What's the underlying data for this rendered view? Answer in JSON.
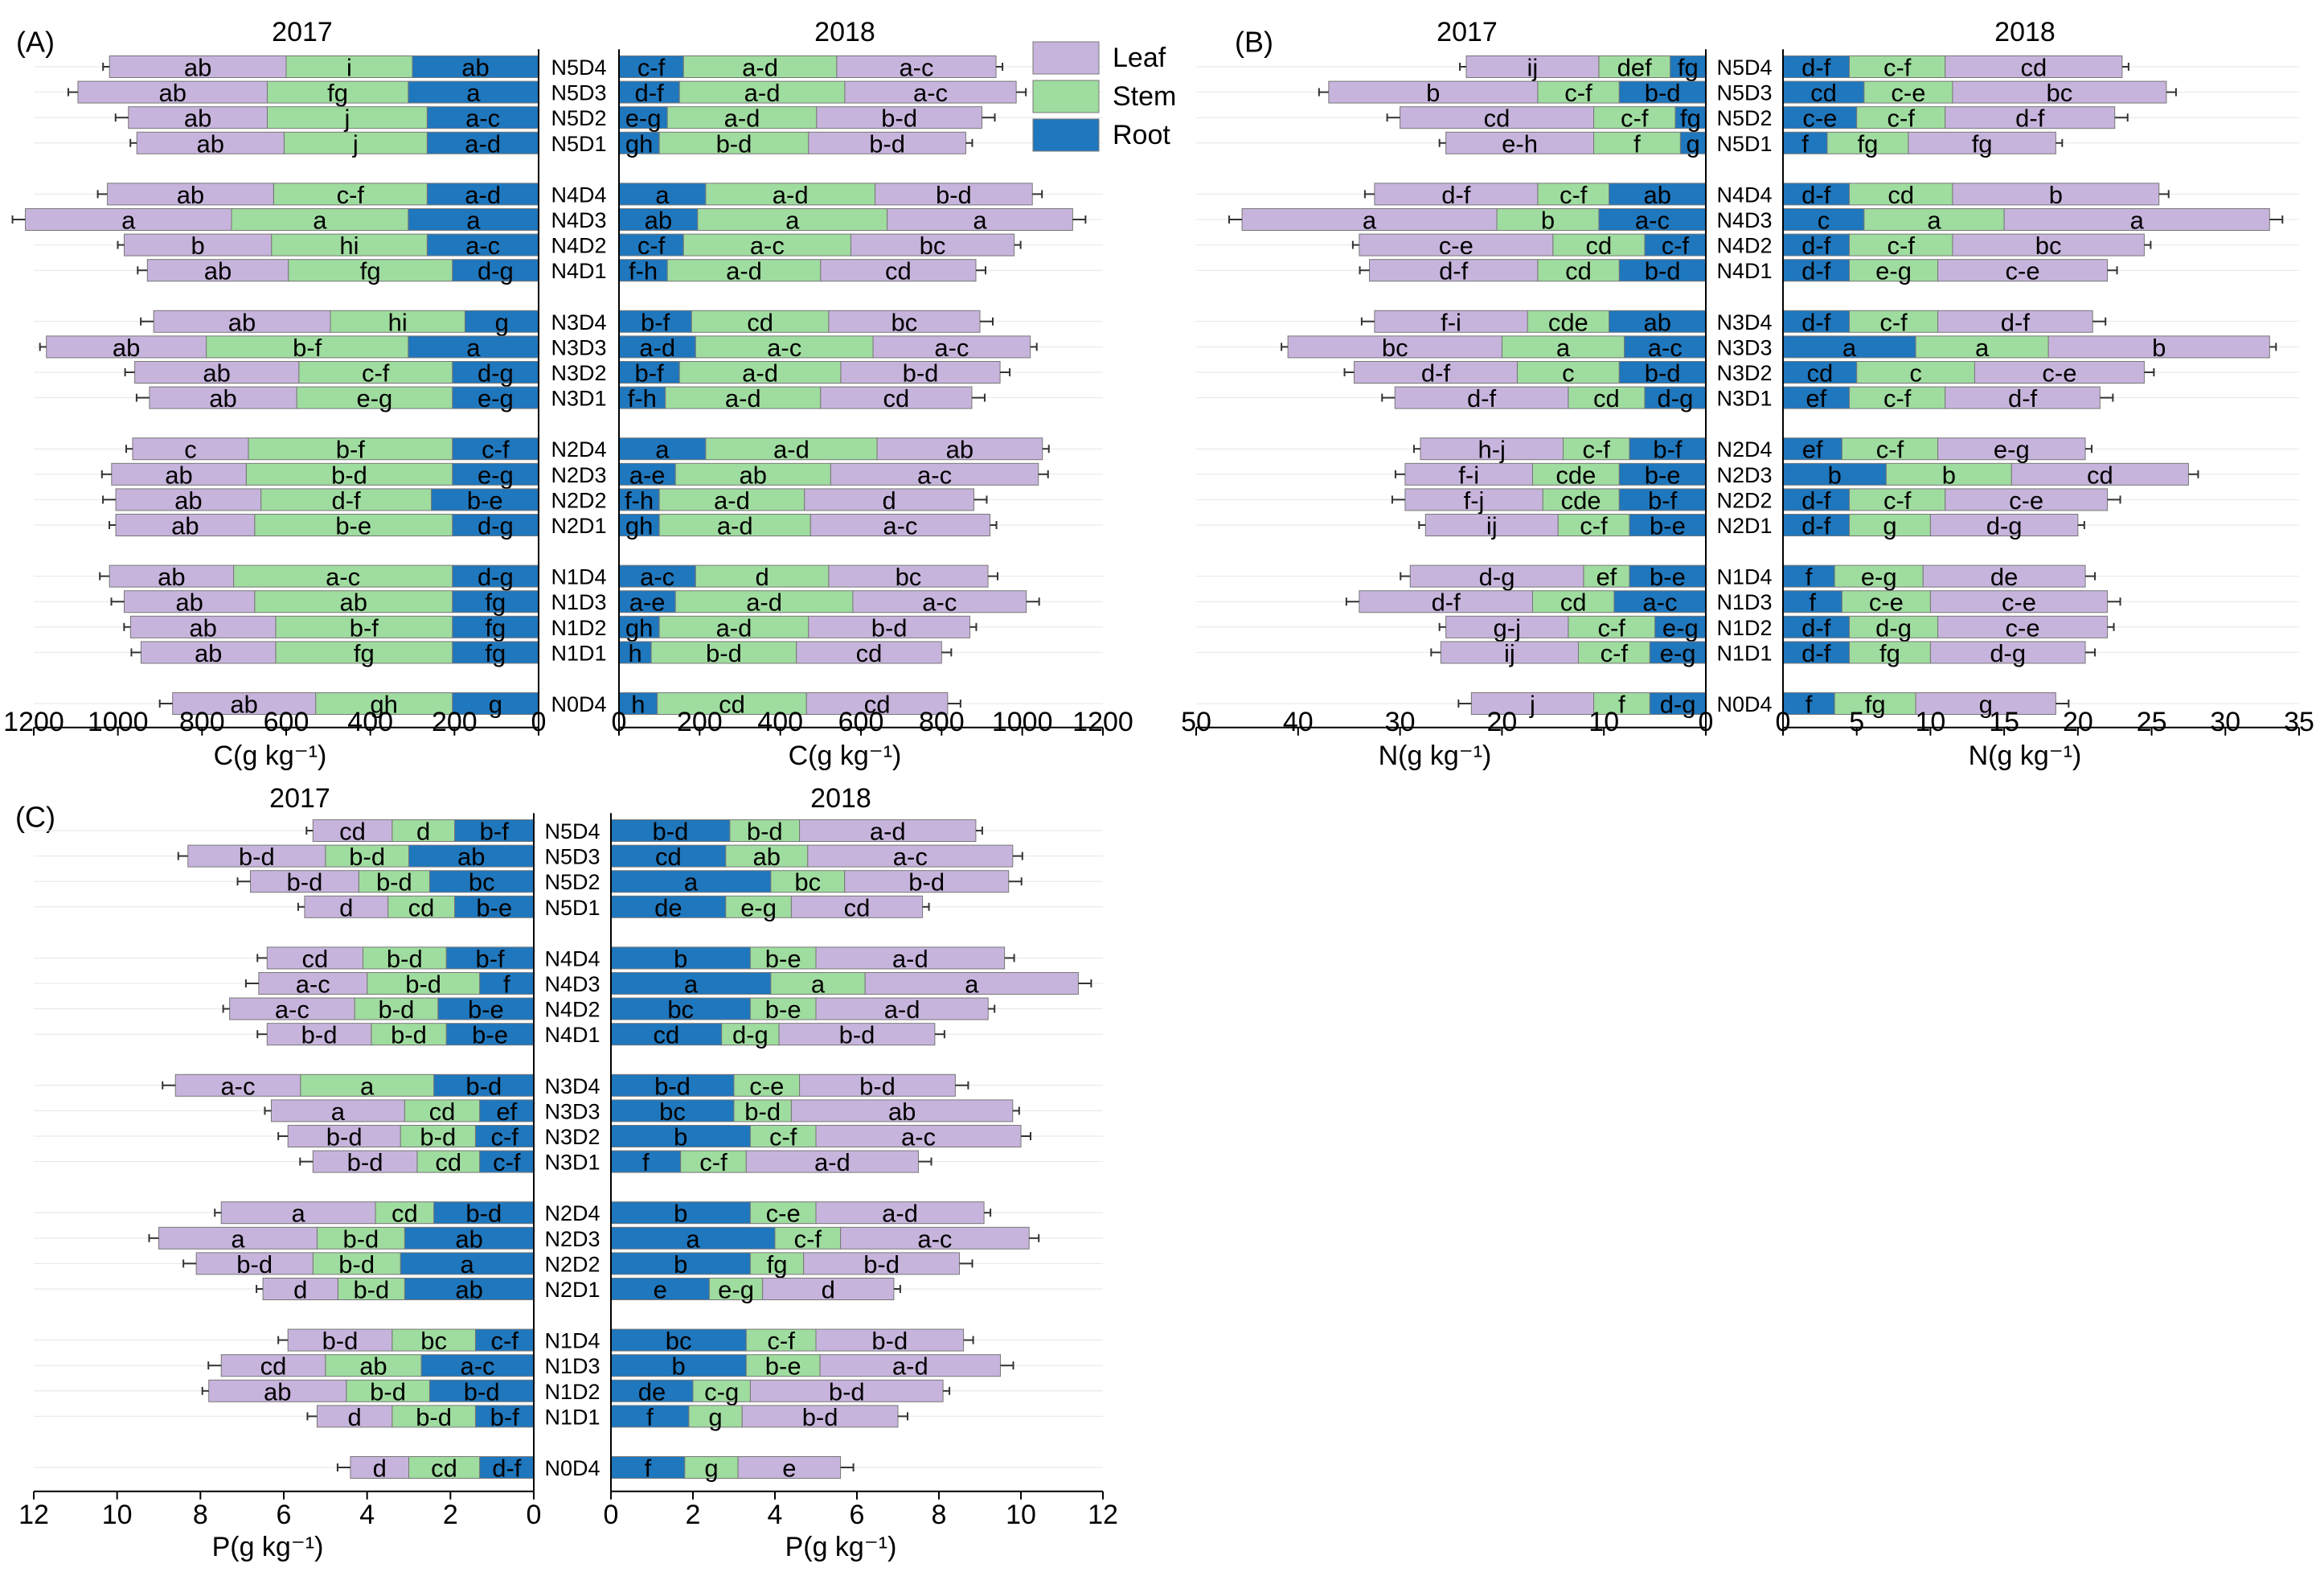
{
  "legend": {
    "items": [
      {
        "name": "Leaf",
        "color": "#c7b4dc"
      },
      {
        "name": "Stem",
        "color": "#9fdc9f"
      },
      {
        "name": "Root",
        "color": "#1f77bd"
      }
    ]
  },
  "chart_data": [
    {
      "type": "bar",
      "panel": "(A)",
      "subtype": "stacked-horizontal-butterfly",
      "xlabel_left": "C(g kg⁻¹)",
      "xlabel_right": "C(g kg⁻¹)",
      "year_left": "2017",
      "year_right": "2018",
      "xlim": [
        0,
        1200
      ],
      "ticks": [
        "0",
        "200",
        "400",
        "600",
        "800",
        "1000",
        "1200"
      ],
      "categories": [
        "N5D4",
        "N5D3",
        "N5D2",
        "N5D1",
        "N4D4",
        "N4D3",
        "N4D2",
        "N4D1",
        "N3D4",
        "N3D3",
        "N3D2",
        "N3D1",
        "N2D4",
        "N2D3",
        "N2D2",
        "N2D1",
        "N1D4",
        "N1D3",
        "N1D2",
        "N1D1",
        "N0D4"
      ],
      "series": [
        {
          "name": "Root",
          "side": "2017",
          "values": [
            300,
            310,
            265,
            265,
            265,
            310,
            265,
            205,
            175,
            310,
            205,
            205,
            205,
            205,
            255,
            205,
            205,
            205,
            205,
            205,
            205
          ],
          "labels": [
            "ab",
            "a",
            "a-c",
            "a-d",
            "a-d",
            "a",
            "a-c",
            "d-g",
            "g",
            "a",
            "d-g",
            "e-g",
            "c-f",
            "e-g",
            "b-e",
            "d-g",
            "d-g",
            "fg",
            "fg",
            "fg",
            "g"
          ]
        },
        {
          "name": "Stem",
          "side": "2017",
          "values": [
            300,
            335,
            380,
            340,
            365,
            420,
            370,
            390,
            320,
            480,
            365,
            370,
            485,
            490,
            405,
            470,
            520,
            470,
            420,
            420,
            325
          ],
          "labels": [
            "i",
            "fg",
            "j",
            "j",
            "c-f",
            "a",
            "hi",
            "fg",
            "hi",
            "b-f",
            "c-f",
            "e-g",
            "b-f",
            "b-d",
            "d-f",
            "b-e",
            "a-c",
            "ab",
            "b-f",
            "fg",
            "gh"
          ]
        },
        {
          "name": "Leaf",
          "side": "2017",
          "values": [
            420,
            450,
            330,
            350,
            395,
            490,
            350,
            335,
            420,
            380,
            390,
            350,
            275,
            320,
            345,
            330,
            295,
            310,
            345,
            320,
            340
          ],
          "labels": [
            "ab",
            "ab",
            "ab",
            "ab",
            "ab",
            "a",
            "b",
            "ab",
            "ab",
            "ab",
            "ab",
            "ab",
            "c",
            "ab",
            "ab",
            "ab",
            "ab",
            "ab",
            "ab",
            "ab",
            "ab"
          ]
        },
        {
          "name": "Root",
          "side": "2018",
          "values": [
            160,
            150,
            120,
            100,
            215,
            195,
            160,
            120,
            180,
            190,
            150,
            115,
            215,
            140,
            100,
            100,
            190,
            140,
            100,
            80,
            95
          ],
          "labels": [
            "c-f",
            "d-f",
            "e-g",
            "gh",
            "a",
            "ab",
            "c-f",
            "f-h",
            "b-f",
            "a-d",
            "b-f",
            "f-h",
            "a",
            "a-e",
            "f-h",
            "gh",
            "a-c",
            "a-e",
            "gh",
            "h",
            "h"
          ]
        },
        {
          "name": "Stem",
          "side": "2018",
          "values": [
            380,
            410,
            370,
            370,
            420,
            470,
            415,
            380,
            340,
            440,
            400,
            385,
            425,
            385,
            360,
            375,
            330,
            440,
            370,
            360,
            370
          ],
          "labels": [
            "a-d",
            "a-d",
            "a-d",
            "b-d",
            "a-d",
            "a",
            "a-c",
            "a-d",
            "cd",
            "a-c",
            "a-d",
            "a-d",
            "a-d",
            "ab",
            "a-d",
            "a-d",
            "d",
            "a-d",
            "a-d",
            "b-d",
            "cd"
          ]
        },
        {
          "name": "Leaf",
          "side": "2018",
          "values": [
            395,
            425,
            410,
            390,
            390,
            460,
            405,
            385,
            375,
            390,
            395,
            375,
            410,
            515,
            420,
            445,
            395,
            430,
            400,
            360,
            350
          ],
          "labels": [
            "a-c",
            "a-c",
            "b-d",
            "b-d",
            "b-d",
            "a",
            "bc",
            "cd",
            "bc",
            "a-c",
            "b-d",
            "cd",
            "ab",
            "a-c",
            "d",
            "a-c",
            "bc",
            "a-c",
            "b-d",
            "cd",
            "cd"
          ]
        }
      ]
    },
    {
      "type": "bar",
      "panel": "(B)",
      "subtype": "stacked-horizontal-butterfly",
      "xlabel_left": "N(g kg⁻¹)",
      "xlabel_right": "N(g kg⁻¹)",
      "year_left": "2017",
      "year_right": "2018",
      "xlim_left": [
        0,
        50
      ],
      "xlim_right": [
        0,
        35
      ],
      "ticks_left": [
        "0",
        "10",
        "20",
        "30",
        "40",
        "50"
      ],
      "ticks_right": [
        "0",
        "5",
        "10",
        "15",
        "20",
        "25",
        "30",
        "35"
      ],
      "categories": [
        "N5D4",
        "N5D3",
        "N5D2",
        "N5D1",
        "N4D4",
        "N4D3",
        "N4D2",
        "N4D1",
        "N3D4",
        "N3D3",
        "N3D2",
        "N3D1",
        "N2D4",
        "N2D3",
        "N2D2",
        "N2D1",
        "N1D4",
        "N1D3",
        "N1D2",
        "N1D1",
        "N0D4"
      ],
      "series": [
        {
          "name": "Root",
          "side": "2017",
          "values": [
            3.5,
            8.5,
            3.0,
            2.5,
            9.5,
            10.5,
            6.0,
            8.5,
            9.5,
            8.0,
            8.5,
            6.0,
            7.5,
            8.5,
            8.5,
            7.5,
            7.5,
            9.0,
            5.0,
            5.5,
            5.5
          ],
          "labels": [
            "fg",
            "b-d",
            "fg",
            "g",
            "ab",
            "a-c",
            "c-f",
            "b-d",
            "ab",
            "a-c",
            "b-d",
            "d-g",
            "b-f",
            "b-e",
            "b-f",
            "b-e",
            "b-e",
            "a-c",
            "e-g",
            "e-g",
            "d-g"
          ]
        },
        {
          "name": "Stem",
          "side": "2017",
          "values": [
            7.0,
            8.0,
            8.0,
            8.5,
            7.0,
            10.0,
            9.0,
            8.0,
            8.0,
            12.0,
            10.0,
            7.5,
            6.5,
            8.5,
            7.5,
            7.0,
            4.5,
            8.0,
            8.5,
            7.0,
            5.5
          ],
          "labels": [
            "def",
            "c-f",
            "c-f",
            "f",
            "c-f",
            "b",
            "cd",
            "cd",
            "cde",
            "a",
            "c",
            "cd",
            "c-f",
            "cde",
            "cde",
            "c-f",
            "ef",
            "cd",
            "c-f",
            "c-f",
            "f"
          ]
        },
        {
          "name": "Leaf",
          "side": "2017",
          "values": [
            13.0,
            20.5,
            19.0,
            14.5,
            16.0,
            25.0,
            19.0,
            16.5,
            15.0,
            21.0,
            16.0,
            17.0,
            14.0,
            12.5,
            13.5,
            13.0,
            17.0,
            17.0,
            12.0,
            13.5,
            12.0
          ],
          "labels": [
            "ij",
            "b",
            "cd",
            "e-h",
            "d-f",
            "a",
            "c-e",
            "d-f",
            "f-i",
            "bc",
            "d-f",
            "d-f",
            "h-j",
            "f-i",
            "f-j",
            "ij",
            "d-g",
            "d-f",
            "g-j",
            "ij",
            "j"
          ]
        },
        {
          "name": "Root",
          "side": "2018",
          "values": [
            4.5,
            5.5,
            5.0,
            3.0,
            4.5,
            5.5,
            4.5,
            4.5,
            4.5,
            9.0,
            5.0,
            4.5,
            4.0,
            7.0,
            4.5,
            4.5,
            3.5,
            4.0,
            4.5,
            4.5,
            3.5
          ],
          "labels": [
            "d-f",
            "cd",
            "c-e",
            "f",
            "d-f",
            "c",
            "d-f",
            "d-f",
            "d-f",
            "a",
            "cd",
            "ef",
            "ef",
            "b",
            "d-f",
            "d-f",
            "f",
            "f",
            "d-f",
            "d-f",
            "f"
          ]
        },
        {
          "name": "Stem",
          "side": "2018",
          "values": [
            6.5,
            6.0,
            6.0,
            5.5,
            7.0,
            9.5,
            7.0,
            6.0,
            6.0,
            9.0,
            8.0,
            6.5,
            6.5,
            8.5,
            6.5,
            5.5,
            6.0,
            6.0,
            6.0,
            5.5,
            5.5
          ],
          "labels": [
            "c-f",
            "c-e",
            "c-f",
            "fg",
            "cd",
            "a",
            "c-f",
            "e-g",
            "c-f",
            "a",
            "c",
            "c-f",
            "c-f",
            "b",
            "c-f",
            "g",
            "e-g",
            "c-e",
            "d-g",
            "fg",
            "fg"
          ]
        },
        {
          "name": "Leaf",
          "side": "2018",
          "values": [
            12.0,
            14.5,
            11.5,
            10.0,
            14.0,
            18.0,
            13.0,
            11.5,
            10.5,
            15.0,
            11.5,
            10.5,
            10.0,
            12.0,
            11.0,
            10.0,
            11.0,
            12.0,
            11.5,
            10.5,
            9.5
          ],
          "labels": [
            "cd",
            "bc",
            "d-f",
            "fg",
            "b",
            "a",
            "bc",
            "c-e",
            "d-f",
            "b",
            "c-e",
            "d-f",
            "e-g",
            "cd",
            "c-e",
            "d-g",
            "de",
            "c-e",
            "c-e",
            "d-g",
            "g"
          ]
        }
      ]
    },
    {
      "type": "bar",
      "panel": "(C)",
      "subtype": "stacked-horizontal-butterfly",
      "xlabel_left": "P(g kg⁻¹)",
      "xlabel_right": "P(g kg⁻¹)",
      "year_left": "2017",
      "year_right": "2018",
      "xlim": [
        0,
        12
      ],
      "ticks": [
        "0",
        "2",
        "4",
        "6",
        "8",
        "10",
        "12"
      ],
      "categories": [
        "N5D4",
        "N5D3",
        "N5D2",
        "N5D1",
        "N4D4",
        "N4D3",
        "N4D2",
        "N4D1",
        "N3D4",
        "N3D3",
        "N3D2",
        "N3D1",
        "N2D4",
        "N2D3",
        "N2D2",
        "N2D1",
        "N1D4",
        "N1D3",
        "N1D2",
        "N1D1",
        "N0D4"
      ],
      "series": [
        {
          "name": "Root",
          "side": "2017",
          "values": [
            1.9,
            3.0,
            2.5,
            1.9,
            2.1,
            1.3,
            2.3,
            2.1,
            2.4,
            1.3,
            1.4,
            1.3,
            2.4,
            3.1,
            3.2,
            3.1,
            1.4,
            2.7,
            2.5,
            1.4,
            1.3
          ],
          "labels": [
            "b-f",
            "ab",
            "bc",
            "b-e",
            "b-f",
            "f",
            "b-e",
            "b-e",
            "b-d",
            "ef",
            "c-f",
            "c-f",
            "b-d",
            "ab",
            "a",
            "ab",
            "c-f",
            "a-c",
            "b-d",
            "b-f",
            "d-f"
          ]
        },
        {
          "name": "Stem",
          "side": "2017",
          "values": [
            1.5,
            2.0,
            1.7,
            1.6,
            2.0,
            2.7,
            2.0,
            1.8,
            3.2,
            1.8,
            1.8,
            1.5,
            1.4,
            2.1,
            2.1,
            1.6,
            2.0,
            2.3,
            2.0,
            2.0,
            1.7
          ],
          "labels": [
            "d",
            "b-d",
            "b-d",
            "cd",
            "b-d",
            "b-d",
            "b-d",
            "b-d",
            "a",
            "cd",
            "b-d",
            "cd",
            "cd",
            "b-d",
            "b-d",
            "b-d",
            "bc",
            "ab",
            "b-d",
            "b-d",
            "cd"
          ]
        },
        {
          "name": "Leaf",
          "side": "2017",
          "values": [
            1.9,
            3.3,
            2.6,
            2.0,
            2.3,
            2.6,
            3.0,
            2.5,
            3.0,
            3.2,
            2.7,
            2.5,
            3.7,
            3.8,
            2.8,
            1.8,
            2.5,
            2.5,
            3.3,
            1.8,
            1.4
          ],
          "labels": [
            "cd",
            "b-d",
            "b-d",
            "d",
            "cd",
            "a-c",
            "a-c",
            "b-d",
            "a-c",
            "a",
            "b-d",
            "b-d",
            "a",
            "a",
            "b-d",
            "d",
            "b-d",
            "cd",
            "ab",
            "d",
            "d"
          ]
        },
        {
          "name": "Root",
          "side": "2018",
          "values": [
            2.9,
            2.8,
            3.9,
            2.8,
            3.4,
            3.9,
            3.4,
            2.7,
            3.0,
            3.0,
            3.4,
            1.7,
            3.4,
            4.0,
            3.4,
            2.4,
            3.3,
            3.3,
            2.0,
            1.9,
            1.8
          ],
          "labels": [
            "b-d",
            "cd",
            "a",
            "de",
            "b",
            "a",
            "bc",
            "cd",
            "b-d",
            "bc",
            "b",
            "f",
            "b",
            "a",
            "b",
            "e",
            "bc",
            "b",
            "de",
            "f",
            "f"
          ]
        },
        {
          "name": "Stem",
          "side": "2018",
          "values": [
            1.7,
            2.0,
            1.8,
            1.6,
            1.6,
            2.3,
            1.6,
            1.4,
            1.6,
            1.4,
            1.6,
            1.6,
            1.6,
            1.6,
            1.3,
            1.3,
            1.7,
            1.8,
            1.4,
            1.3,
            1.3
          ],
          "labels": [
            "b-d",
            "ab",
            "bc",
            "e-g",
            "b-e",
            "a",
            "b-e",
            "d-g",
            "c-e",
            "b-d",
            "c-f",
            "c-f",
            "c-e",
            "c-f",
            "fg",
            "e-g",
            "c-f",
            "b-e",
            "c-g",
            "g",
            "g"
          ]
        },
        {
          "name": "Leaf",
          "side": "2018",
          "values": [
            4.3,
            5.0,
            4.0,
            3.2,
            4.6,
            5.2,
            4.2,
            3.8,
            3.8,
            5.4,
            5.0,
            4.2,
            4.1,
            4.6,
            3.8,
            3.2,
            3.6,
            4.4,
            4.7,
            3.8,
            2.5
          ],
          "labels": [
            "a-d",
            "a-c",
            "b-d",
            "cd",
            "a-d",
            "a",
            "a-d",
            "b-d",
            "b-d",
            "ab",
            "a-c",
            "a-d",
            "a-d",
            "a-c",
            "b-d",
            "d",
            "b-d",
            "a-d",
            "b-d",
            "b-d",
            "e"
          ]
        }
      ]
    }
  ]
}
